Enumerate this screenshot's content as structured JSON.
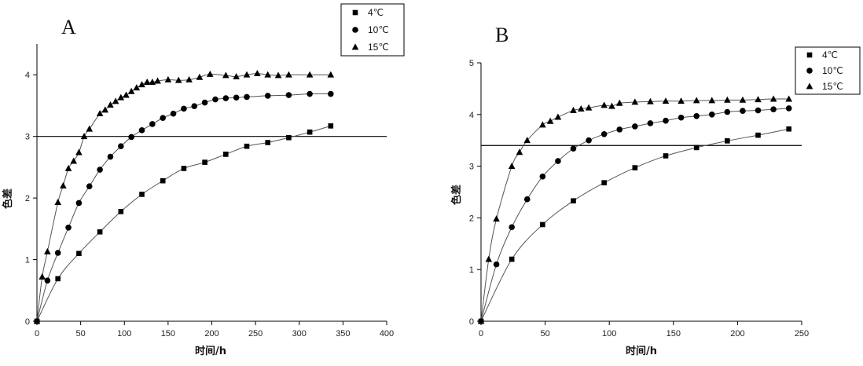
{
  "chart_data": [
    {
      "type": "scatter",
      "panel_label": "A",
      "xlabel": "时间/h",
      "ylabel": "色差",
      "xlim": [
        0,
        400
      ],
      "ylim": [
        0,
        4.5
      ],
      "x_ticks": [
        "0",
        "50",
        "100",
        "150",
        "200",
        "250",
        "300",
        "350",
        "400"
      ],
      "y_ticks": [
        "0",
        "1",
        "2",
        "3",
        "4"
      ],
      "legend_position": "top-right",
      "reference_line_y": 3.0,
      "series": [
        {
          "name": "4℃",
          "marker": "square",
          "x": [
            0,
            24,
            48,
            72,
            96,
            120,
            144,
            168,
            192,
            216,
            240,
            264,
            288,
            312,
            336
          ],
          "y": [
            0.0,
            0.69,
            1.1,
            1.45,
            1.78,
            2.06,
            2.28,
            2.48,
            2.58,
            2.71,
            2.84,
            2.9,
            2.98,
            3.07,
            3.17
          ]
        },
        {
          "name": "10℃",
          "marker": "circle",
          "x": [
            0,
            12,
            24,
            36,
            48,
            60,
            72,
            84,
            96,
            108,
            120,
            132,
            144,
            156,
            168,
            180,
            192,
            204,
            216,
            228,
            240,
            264,
            288,
            312,
            336
          ],
          "y": [
            0.0,
            0.66,
            1.11,
            1.52,
            1.92,
            2.19,
            2.46,
            2.67,
            2.84,
            2.99,
            3.1,
            3.2,
            3.3,
            3.37,
            3.45,
            3.49,
            3.55,
            3.6,
            3.62,
            3.63,
            3.64,
            3.66,
            3.67,
            3.69,
            3.69
          ]
        },
        {
          "name": "15℃",
          "marker": "triangle",
          "x": [
            0,
            6,
            12,
            24,
            30,
            36,
            42,
            48,
            54,
            60,
            72,
            78,
            84,
            90,
            96,
            102,
            108,
            114,
            120,
            126,
            132,
            138,
            150,
            162,
            174,
            186,
            198,
            216,
            228,
            240,
            252,
            264,
            276,
            288,
            312,
            336
          ],
          "y": [
            0.0,
            0.72,
            1.13,
            1.93,
            2.2,
            2.48,
            2.6,
            2.74,
            3.0,
            3.12,
            3.37,
            3.43,
            3.51,
            3.57,
            3.63,
            3.67,
            3.73,
            3.79,
            3.84,
            3.88,
            3.88,
            3.9,
            3.92,
            3.91,
            3.92,
            3.96,
            4.01,
            3.99,
            3.97,
            4.0,
            4.02,
            4.0,
            3.99,
            4.0,
            4.0,
            4.0
          ]
        }
      ]
    },
    {
      "type": "scatter",
      "panel_label": "B",
      "xlabel": "时间/h",
      "ylabel": "色差",
      "xlim": [
        0,
        250
      ],
      "ylim": [
        0,
        5
      ],
      "x_ticks": [
        "0",
        "50",
        "100",
        "150",
        "200",
        "250"
      ],
      "y_ticks": [
        "0",
        "1",
        "2",
        "3",
        "4",
        "5"
      ],
      "legend_position": "top-right",
      "reference_line_y": 3.4,
      "series": [
        {
          "name": "4℃",
          "marker": "square",
          "x": [
            0,
            24,
            48,
            72,
            96,
            120,
            144,
            168,
            192,
            216,
            240
          ],
          "y": [
            0.0,
            1.2,
            1.87,
            2.33,
            2.68,
            2.97,
            3.2,
            3.36,
            3.49,
            3.6,
            3.72
          ]
        },
        {
          "name": "10℃",
          "marker": "circle",
          "x": [
            0,
            12,
            24,
            36,
            48,
            60,
            72,
            84,
            96,
            108,
            120,
            132,
            144,
            156,
            168,
            180,
            192,
            204,
            216,
            228,
            240
          ],
          "y": [
            0.0,
            1.1,
            1.82,
            2.36,
            2.8,
            3.1,
            3.34,
            3.5,
            3.62,
            3.71,
            3.77,
            3.83,
            3.88,
            3.94,
            3.97,
            4.0,
            4.05,
            4.07,
            4.08,
            4.1,
            4.12
          ]
        },
        {
          "name": "15℃",
          "marker": "triangle",
          "x": [
            0,
            6,
            12,
            24,
            30,
            36,
            48,
            54,
            60,
            72,
            78,
            84,
            96,
            102,
            108,
            120,
            132,
            144,
            156,
            168,
            180,
            192,
            204,
            216,
            228,
            240
          ],
          "y": [
            0.0,
            1.2,
            1.98,
            3.0,
            3.27,
            3.5,
            3.8,
            3.87,
            3.95,
            4.08,
            4.11,
            4.13,
            4.18,
            4.16,
            4.22,
            4.24,
            4.25,
            4.26,
            4.26,
            4.27,
            4.27,
            4.28,
            4.28,
            4.29,
            4.3,
            4.3
          ]
        }
      ]
    }
  ]
}
